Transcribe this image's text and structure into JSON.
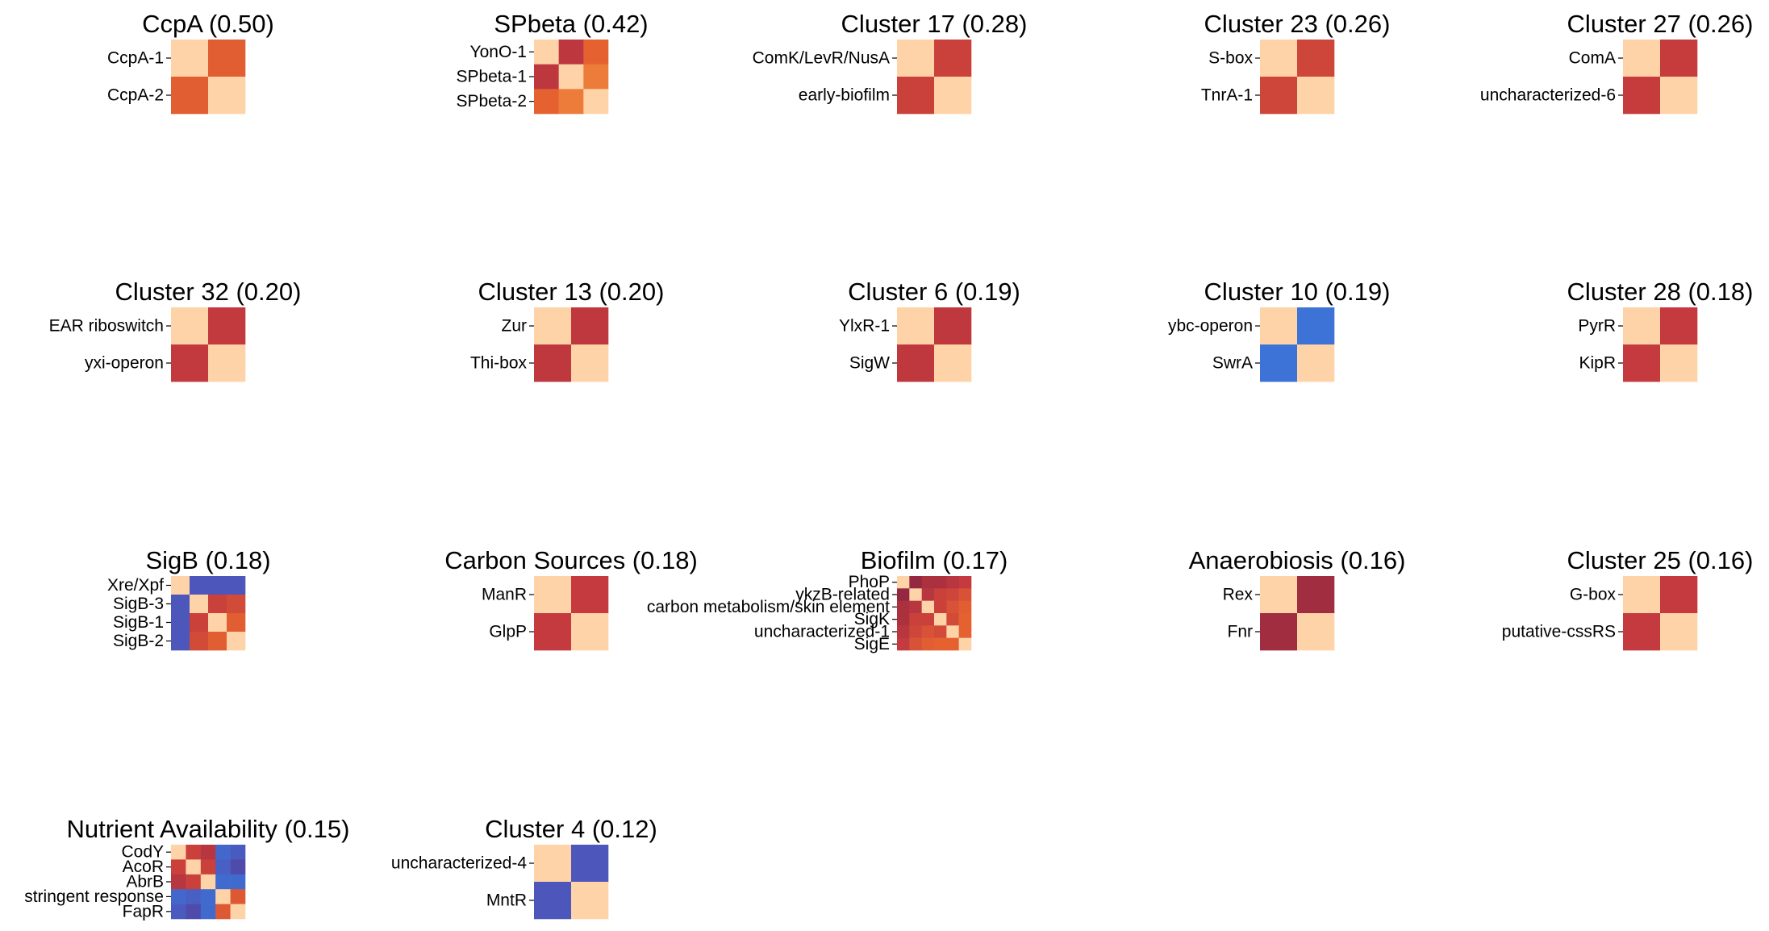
{
  "chart_data": [
    {
      "type": "heatmap",
      "title": "CcpA (0.50)",
      "labels": [
        "CcpA-1",
        "CcpA-2"
      ],
      "values": [
        [
          1.0,
          0.5
        ],
        [
          0.5,
          1.0
        ]
      ]
    },
    {
      "type": "heatmap",
      "title": "SPbeta (0.42)",
      "labels": [
        "YonO-1",
        "SPbeta-1",
        "SPbeta-2"
      ],
      "values": [
        [
          1.0,
          0.32,
          0.52
        ],
        [
          0.32,
          1.0,
          0.6
        ],
        [
          0.52,
          0.6,
          1.0
        ]
      ]
    },
    {
      "type": "heatmap",
      "title": "Cluster 17 (0.28)",
      "labels": [
        "ComK/LevR/NusA",
        "early-biofilm"
      ],
      "values": [
        [
          1.0,
          0.38
        ],
        [
          0.38,
          1.0
        ]
      ]
    },
    {
      "type": "heatmap",
      "title": "Cluster 23 (0.26)",
      "labels": [
        "S-box",
        "TnrA-1"
      ],
      "values": [
        [
          1.0,
          0.4
        ],
        [
          0.4,
          1.0
        ]
      ]
    },
    {
      "type": "heatmap",
      "title": "Cluster 27 (0.26)",
      "labels": [
        "ComA",
        "uncharacterized-6"
      ],
      "values": [
        [
          1.0,
          0.36
        ],
        [
          0.36,
          1.0
        ]
      ]
    },
    {
      "type": "heatmap",
      "title": "Cluster 32 (0.20)",
      "labels": [
        "EAR riboswitch",
        "yxi-operon"
      ],
      "values": [
        [
          1.0,
          0.34
        ],
        [
          0.34,
          1.0
        ]
      ]
    },
    {
      "type": "heatmap",
      "title": "Cluster 13 (0.20)",
      "labels": [
        "Zur",
        "Thi-box"
      ],
      "values": [
        [
          1.0,
          0.33
        ],
        [
          0.33,
          1.0
        ]
      ]
    },
    {
      "type": "heatmap",
      "title": "Cluster 6 (0.19)",
      "labels": [
        "YlxR-1",
        "SigW"
      ],
      "values": [
        [
          1.0,
          0.33
        ],
        [
          0.33,
          1.0
        ]
      ]
    },
    {
      "type": "heatmap",
      "title": "Cluster 10 (0.19)",
      "labels": [
        "ybc-operon",
        "SwrA"
      ],
      "values": [
        [
          1.0,
          -0.45
        ],
        [
          -0.45,
          1.0
        ]
      ]
    },
    {
      "type": "heatmap",
      "title": "Cluster 28 (0.18)",
      "labels": [
        "PyrR",
        "KipR"
      ],
      "values": [
        [
          1.0,
          0.35
        ],
        [
          0.35,
          1.0
        ]
      ]
    },
    {
      "type": "heatmap",
      "title": "SigB (0.18)",
      "labels": [
        "Xre/Xpf",
        "SigB-3",
        "SigB-1",
        "SigB-2"
      ],
      "values": [
        [
          1.0,
          -0.7,
          -0.7,
          -0.7
        ],
        [
          -0.7,
          1.0,
          0.38,
          0.42
        ],
        [
          -0.7,
          0.38,
          1.0,
          0.5
        ],
        [
          -0.7,
          0.42,
          0.5,
          1.0
        ]
      ]
    },
    {
      "type": "heatmap",
      "title": "Carbon Sources (0.18)",
      "labels": [
        "ManR",
        "GlpP"
      ],
      "values": [
        [
          1.0,
          0.35
        ],
        [
          0.35,
          1.0
        ]
      ]
    },
    {
      "type": "heatmap",
      "title": "Biofilm (0.17)",
      "labels": [
        "PhoP",
        "ykzB-related",
        "carbon metabolism/skin element",
        "SigK",
        "uncharacterized-1",
        "SigE"
      ],
      "values": [
        [
          1.0,
          0.15,
          0.25,
          0.25,
          0.3,
          0.35
        ],
        [
          0.15,
          1.0,
          0.3,
          0.38,
          0.4,
          0.45
        ],
        [
          0.25,
          0.3,
          1.0,
          0.38,
          0.45,
          0.5
        ],
        [
          0.25,
          0.38,
          0.38,
          1.0,
          0.42,
          0.52
        ],
        [
          0.3,
          0.4,
          0.45,
          0.42,
          1.0,
          0.52
        ],
        [
          0.35,
          0.45,
          0.5,
          0.52,
          0.52,
          1.0
        ]
      ]
    },
    {
      "type": "heatmap",
      "title": "Anaerobiosis (0.16)",
      "labels": [
        "Rex",
        "Fnr"
      ],
      "values": [
        [
          1.0,
          0.2
        ],
        [
          0.2,
          1.0
        ]
      ]
    },
    {
      "type": "heatmap",
      "title": "Cluster 25 (0.16)",
      "labels": [
        "G-box",
        "putative-cssRS"
      ],
      "values": [
        [
          1.0,
          0.35
        ],
        [
          0.35,
          1.0
        ]
      ]
    },
    {
      "type": "heatmap",
      "title": "Nutrient Availability (0.15)",
      "labels": [
        "CodY",
        "AcoR",
        "AbrB",
        "stringent response",
        "FapR"
      ],
      "values": [
        [
          1.0,
          0.38,
          0.3,
          -0.55,
          -0.65
        ],
        [
          0.38,
          1.0,
          0.38,
          -0.62,
          -0.8
        ],
        [
          0.3,
          0.38,
          1.0,
          -0.52,
          -0.52
        ],
        [
          -0.55,
          -0.62,
          -0.52,
          1.0,
          0.48
        ],
        [
          -0.65,
          -0.8,
          -0.52,
          0.48,
          1.0
        ]
      ]
    },
    {
      "type": "heatmap",
      "title": "Cluster 4 (0.12)",
      "labels": [
        "uncharacterized-4",
        "MntR"
      ],
      "values": [
        [
          1.0,
          -0.7
        ],
        [
          -0.7,
          1.0
        ]
      ]
    }
  ]
}
